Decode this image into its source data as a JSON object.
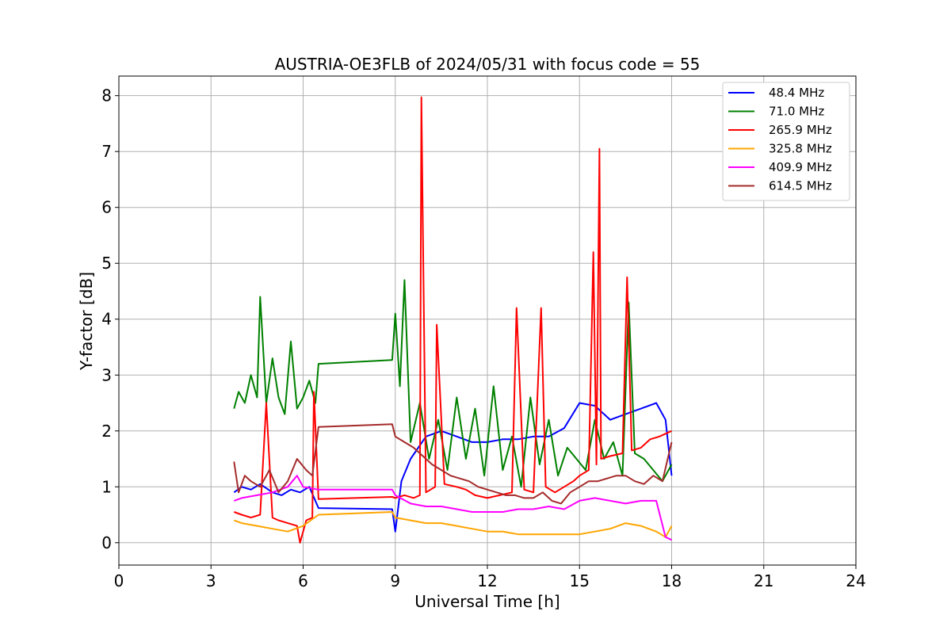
{
  "chart_data": {
    "type": "line",
    "title": "AUSTRIA-OE3FLB of 2024/05/31 with focus code = 55",
    "xlabel": "Universal Time [h]",
    "ylabel": "Y-factor [dB]",
    "xlim": [
      0,
      24
    ],
    "ylim": [
      -0.4,
      8.35
    ],
    "xticks": [
      0,
      3,
      6,
      9,
      12,
      15,
      18,
      21,
      24
    ],
    "yticks": [
      0,
      1,
      2,
      3,
      4,
      5,
      6,
      7,
      8
    ],
    "grid": true,
    "legend_position": "top-right",
    "series": [
      {
        "name": " 48.4 MHz",
        "color": "#0000ff",
        "x": [
          3.75,
          4.0,
          4.3,
          4.6,
          5.0,
          5.3,
          5.6,
          5.9,
          6.2,
          6.5,
          8.9,
          9.0,
          9.2,
          9.5,
          10.0,
          10.5,
          11.0,
          11.5,
          12.0,
          12.5,
          13.0,
          13.5,
          14.0,
          14.5,
          15.0,
          15.5,
          16.0,
          16.5,
          17.0,
          17.5,
          17.8,
          18.0
        ],
        "y": [
          0.9,
          1.0,
          0.95,
          1.05,
          0.9,
          0.85,
          0.95,
          0.9,
          1.0,
          0.62,
          0.6,
          0.2,
          1.1,
          1.5,
          1.9,
          2.0,
          1.9,
          1.8,
          1.8,
          1.85,
          1.85,
          1.9,
          1.9,
          2.05,
          2.5,
          2.45,
          2.2,
          2.3,
          2.4,
          2.5,
          2.2,
          1.2
        ]
      },
      {
        "name": " 71.0 MHz",
        "color": "#008000",
        "x": [
          3.75,
          3.9,
          4.1,
          4.3,
          4.5,
          4.6,
          4.8,
          5.0,
          5.2,
          5.4,
          5.6,
          5.8,
          6.0,
          6.2,
          6.4,
          6.5,
          8.9,
          9.0,
          9.15,
          9.3,
          9.5,
          9.8,
          10.1,
          10.4,
          10.7,
          11.0,
          11.3,
          11.6,
          11.9,
          12.2,
          12.5,
          12.8,
          13.1,
          13.4,
          13.7,
          14.0,
          14.3,
          14.6,
          14.9,
          15.2,
          15.5,
          15.8,
          16.1,
          16.4,
          16.6,
          16.8,
          17.1,
          17.4,
          17.7,
          18.0
        ],
        "y": [
          2.4,
          2.7,
          2.5,
          3.0,
          2.6,
          4.4,
          2.5,
          3.3,
          2.6,
          2.3,
          3.6,
          2.4,
          2.6,
          2.9,
          2.5,
          3.2,
          3.27,
          4.1,
          2.8,
          4.7,
          1.8,
          2.5,
          1.5,
          2.2,
          1.3,
          2.6,
          1.5,
          2.4,
          1.2,
          2.8,
          1.3,
          1.9,
          1.0,
          2.6,
          1.4,
          2.2,
          1.2,
          1.7,
          1.5,
          1.3,
          2.2,
          1.5,
          1.8,
          1.2,
          4.3,
          1.6,
          1.5,
          1.3,
          1.1,
          1.4
        ]
      },
      {
        "name": "265.9 MHz",
        "color": "#ff0000",
        "x": [
          3.75,
          4.0,
          4.3,
          4.6,
          4.8,
          5.0,
          5.2,
          5.5,
          5.8,
          5.9,
          6.1,
          6.3,
          6.35,
          6.5,
          8.9,
          9.0,
          9.3,
          9.6,
          9.8,
          9.85,
          10.0,
          10.3,
          10.35,
          10.6,
          11.0,
          11.3,
          11.6,
          12.0,
          12.4,
          12.8,
          12.95,
          13.2,
          13.5,
          13.75,
          13.9,
          14.2,
          14.5,
          14.8,
          15.0,
          15.3,
          15.45,
          15.55,
          15.65,
          15.7,
          16.0,
          16.4,
          16.55,
          16.7,
          17.0,
          17.3,
          17.6,
          18.0
        ],
        "y": [
          0.55,
          0.5,
          0.45,
          0.5,
          2.5,
          0.45,
          0.4,
          0.35,
          0.3,
          0.0,
          0.4,
          0.45,
          2.7,
          0.78,
          0.82,
          0.8,
          0.85,
          0.8,
          0.85,
          7.97,
          0.9,
          1.0,
          3.9,
          1.05,
          1.0,
          0.95,
          0.85,
          0.8,
          0.85,
          0.9,
          4.2,
          0.95,
          0.9,
          4.2,
          1.0,
          0.9,
          1.0,
          1.1,
          1.2,
          1.3,
          5.2,
          1.4,
          7.05,
          1.5,
          1.55,
          1.6,
          4.75,
          1.65,
          1.7,
          1.85,
          1.9,
          2.0
        ]
      },
      {
        "name": "325.8 MHz",
        "color": "#ffa500",
        "x": [
          3.75,
          4.0,
          4.5,
          5.0,
          5.5,
          6.0,
          6.5,
          8.9,
          9.0,
          9.5,
          10.0,
          10.5,
          11.0,
          11.5,
          12.0,
          12.5,
          13.0,
          13.5,
          14.0,
          14.5,
          15.0,
          15.5,
          16.0,
          16.5,
          17.0,
          17.5,
          17.8,
          18.0
        ],
        "y": [
          0.4,
          0.35,
          0.3,
          0.25,
          0.2,
          0.3,
          0.5,
          0.55,
          0.45,
          0.4,
          0.35,
          0.35,
          0.3,
          0.25,
          0.2,
          0.2,
          0.15,
          0.15,
          0.15,
          0.15,
          0.15,
          0.2,
          0.25,
          0.35,
          0.3,
          0.2,
          0.1,
          0.3
        ]
      },
      {
        "name": "409.9 MHz",
        "color": "#ff00ff",
        "x": [
          3.75,
          4.0,
          4.5,
          5.0,
          5.5,
          5.8,
          6.0,
          6.5,
          8.9,
          9.0,
          9.5,
          10.0,
          10.5,
          11.0,
          11.5,
          12.0,
          12.5,
          13.0,
          13.5,
          14.0,
          14.5,
          15.0,
          15.5,
          16.0,
          16.5,
          17.0,
          17.5,
          17.8,
          18.0
        ],
        "y": [
          0.75,
          0.8,
          0.85,
          0.9,
          1.0,
          1.2,
          1.0,
          0.95,
          0.95,
          0.85,
          0.7,
          0.65,
          0.65,
          0.6,
          0.55,
          0.55,
          0.55,
          0.6,
          0.6,
          0.65,
          0.6,
          0.75,
          0.8,
          0.75,
          0.7,
          0.75,
          0.75,
          0.1,
          0.05
        ]
      },
      {
        "name": "614.5 MHz",
        "color": "#a52a2a",
        "x": [
          3.75,
          3.9,
          4.1,
          4.3,
          4.6,
          4.9,
          5.2,
          5.5,
          5.8,
          6.1,
          6.3,
          6.5,
          8.9,
          9.0,
          9.3,
          9.6,
          9.9,
          10.2,
          10.5,
          10.8,
          11.1,
          11.4,
          11.7,
          12.0,
          12.3,
          12.6,
          12.9,
          13.2,
          13.5,
          13.8,
          14.1,
          14.4,
          14.7,
          15.0,
          15.3,
          15.6,
          15.9,
          16.2,
          16.5,
          16.8,
          17.1,
          17.4,
          17.7,
          18.0
        ],
        "y": [
          1.45,
          0.9,
          1.2,
          1.1,
          1.0,
          1.3,
          0.9,
          1.1,
          1.5,
          1.3,
          1.2,
          2.07,
          2.12,
          1.9,
          1.8,
          1.7,
          1.55,
          1.4,
          1.3,
          1.2,
          1.15,
          1.1,
          1.0,
          0.95,
          0.9,
          0.85,
          0.85,
          0.8,
          0.8,
          0.9,
          0.75,
          0.7,
          0.9,
          1.0,
          1.1,
          1.1,
          1.15,
          1.2,
          1.2,
          1.1,
          1.05,
          1.2,
          1.1,
          1.8
        ]
      }
    ]
  }
}
